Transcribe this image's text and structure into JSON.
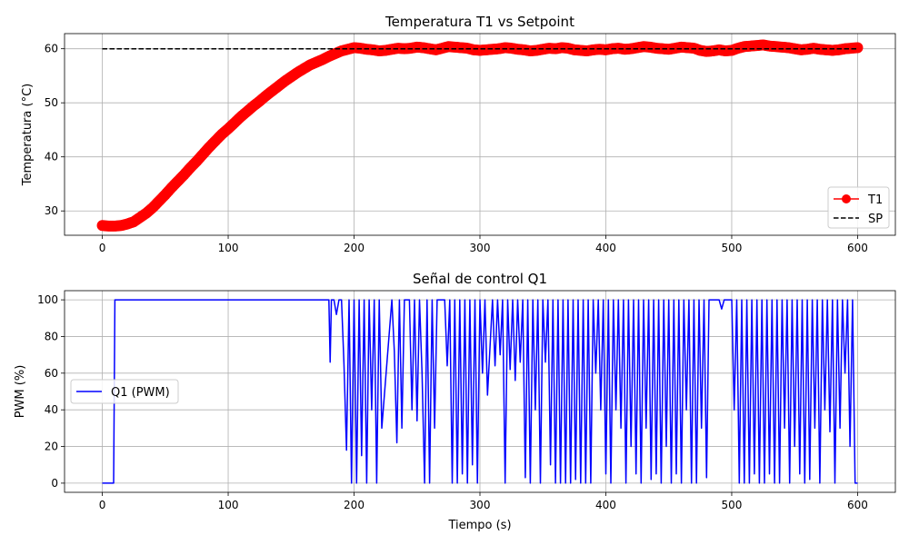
{
  "chart_data": [
    {
      "id": "top",
      "type": "line",
      "title": "Temperatura T1 vs Setpoint",
      "xlabel": "",
      "ylabel": "Temperatura (°C)",
      "xlim": [
        -30,
        630
      ],
      "ylim": [
        25.5,
        62.8
      ],
      "xticks": [
        0,
        100,
        200,
        300,
        400,
        500,
        600
      ],
      "yticks": [
        30,
        40,
        50,
        60
      ],
      "grid": true,
      "legend_position": "lower right",
      "series": [
        {
          "name": "T1",
          "color": "#ff0000",
          "marker": "circle",
          "x": [
            0,
            5,
            10,
            15,
            20,
            25,
            30,
            35,
            40,
            45,
            50,
            55,
            60,
            65,
            70,
            75,
            80,
            85,
            90,
            95,
            100,
            105,
            110,
            115,
            120,
            125,
            130,
            135,
            140,
            145,
            150,
            155,
            160,
            165,
            170,
            175,
            180,
            185,
            190,
            195,
            200,
            205,
            210,
            215,
            220,
            225,
            230,
            235,
            240,
            245,
            250,
            255,
            260,
            265,
            270,
            275,
            280,
            285,
            290,
            295,
            300,
            305,
            310,
            315,
            320,
            325,
            330,
            335,
            340,
            345,
            350,
            355,
            360,
            365,
            370,
            375,
            380,
            385,
            390,
            395,
            400,
            405,
            410,
            415,
            420,
            425,
            430,
            435,
            440,
            445,
            450,
            455,
            460,
            465,
            470,
            475,
            480,
            485,
            490,
            495,
            500,
            505,
            510,
            515,
            520,
            525,
            530,
            535,
            540,
            545,
            550,
            555,
            560,
            565,
            570,
            575,
            580,
            585,
            590,
            595,
            600
          ],
          "y": [
            27.3,
            27.2,
            27.2,
            27.3,
            27.6,
            28.0,
            28.8,
            29.6,
            30.6,
            31.8,
            33.0,
            34.3,
            35.5,
            36.7,
            38.0,
            39.2,
            40.5,
            41.8,
            43.0,
            44.2,
            45.2,
            46.3,
            47.4,
            48.4,
            49.4,
            50.3,
            51.3,
            52.2,
            53.1,
            54.0,
            54.8,
            55.6,
            56.3,
            57.0,
            57.5,
            58.0,
            58.6,
            59.1,
            59.6,
            59.9,
            60.2,
            60.1,
            59.9,
            59.8,
            59.6,
            59.7,
            59.9,
            60.1,
            60.0,
            60.1,
            60.3,
            60.2,
            60.0,
            59.8,
            60.1,
            60.4,
            60.3,
            60.2,
            60.1,
            59.8,
            59.7,
            59.8,
            59.9,
            60.0,
            60.2,
            60.1,
            59.9,
            59.8,
            59.6,
            59.7,
            59.9,
            60.1,
            60.0,
            60.2,
            60.1,
            59.8,
            59.7,
            59.6,
            59.8,
            59.9,
            59.8,
            60.0,
            60.1,
            59.9,
            60.0,
            60.2,
            60.4,
            60.3,
            60.1,
            60.0,
            59.9,
            60.1,
            60.3,
            60.2,
            60.1,
            59.7,
            59.5,
            59.6,
            59.8,
            59.6,
            59.7,
            60.1,
            60.4,
            60.5,
            60.6,
            60.7,
            60.5,
            60.4,
            60.3,
            60.2,
            60.0,
            59.8,
            59.9,
            60.1,
            59.9,
            59.8,
            59.7,
            59.8,
            60.0,
            60.1,
            60.2
          ]
        },
        {
          "name": "SP",
          "color": "#000000",
          "dashed": true,
          "x": [
            0,
            600
          ],
          "y": [
            60,
            60
          ]
        }
      ]
    },
    {
      "id": "bottom",
      "type": "line",
      "title": "Señal de control Q1",
      "xlabel": "Tiempo (s)",
      "ylabel": "PWM (%)",
      "xlim": [
        -30,
        630
      ],
      "ylim": [
        -5,
        105
      ],
      "xticks": [
        0,
        100,
        200,
        300,
        400,
        500,
        600
      ],
      "yticks": [
        0,
        20,
        40,
        60,
        80,
        100
      ],
      "grid": true,
      "legend_position": "center left",
      "series": [
        {
          "name": "Q1 (PWM)",
          "color": "#0000ff",
          "x": [
            0,
            9,
            10,
            180,
            181,
            182,
            184,
            186,
            188,
            190,
            192,
            194,
            196,
            198,
            200,
            202,
            204,
            206,
            208,
            210,
            212,
            214,
            216,
            218,
            220,
            222,
            230,
            232,
            234,
            236,
            238,
            240,
            244,
            246,
            248,
            250,
            252,
            254,
            256,
            258,
            260,
            262,
            264,
            266,
            272,
            274,
            276,
            278,
            280,
            282,
            284,
            286,
            288,
            290,
            292,
            294,
            296,
            298,
            300,
            302,
            304,
            306,
            310,
            312,
            314,
            316,
            318,
            320,
            322,
            324,
            326,
            328,
            330,
            332,
            334,
            336,
            338,
            340,
            342,
            344,
            346,
            348,
            350,
            352,
            354,
            356,
            358,
            360,
            362,
            364,
            366,
            368,
            370,
            372,
            374,
            376,
            378,
            380,
            382,
            384,
            386,
            388,
            390,
            392,
            394,
            396,
            398,
            400,
            402,
            404,
            406,
            408,
            410,
            412,
            414,
            416,
            418,
            420,
            422,
            424,
            426,
            428,
            430,
            432,
            434,
            436,
            438,
            440,
            442,
            444,
            446,
            448,
            450,
            452,
            454,
            456,
            458,
            460,
            462,
            464,
            466,
            468,
            470,
            472,
            474,
            476,
            478,
            480,
            482,
            490,
            492,
            494,
            496,
            498,
            500,
            502,
            504,
            506,
            508,
            510,
            512,
            514,
            516,
            518,
            520,
            522,
            524,
            526,
            528,
            530,
            532,
            534,
            536,
            538,
            540,
            542,
            544,
            546,
            548,
            550,
            552,
            554,
            556,
            558,
            560,
            562,
            564,
            566,
            568,
            570,
            572,
            574,
            576,
            578,
            580,
            582,
            584,
            586,
            588,
            590,
            592,
            594,
            596,
            598,
            600
          ],
          "y": [
            0,
            0,
            100,
            100,
            66,
            100,
            100,
            92,
            100,
            100,
            65,
            18,
            100,
            0,
            100,
            0,
            100,
            15,
            100,
            0,
            100,
            40,
            100,
            0,
            100,
            30,
            100,
            72,
            22,
            100,
            30,
            100,
            100,
            40,
            100,
            34,
            100,
            60,
            0,
            100,
            0,
            100,
            30,
            100,
            100,
            64,
            100,
            0,
            100,
            0,
            100,
            5,
            100,
            0,
            100,
            10,
            100,
            0,
            100,
            60,
            100,
            48,
            100,
            64,
            100,
            70,
            100,
            0,
            100,
            62,
            100,
            56,
            100,
            66,
            100,
            3,
            100,
            0,
            100,
            40,
            100,
            0,
            100,
            66,
            100,
            10,
            100,
            0,
            100,
            0,
            100,
            0,
            100,
            0,
            100,
            2,
            100,
            0,
            100,
            0,
            100,
            0,
            100,
            60,
            100,
            40,
            100,
            5,
            100,
            0,
            100,
            40,
            100,
            30,
            100,
            0,
            100,
            20,
            100,
            5,
            100,
            0,
            100,
            30,
            100,
            2,
            100,
            5,
            100,
            0,
            100,
            20,
            100,
            0,
            100,
            5,
            100,
            0,
            100,
            40,
            100,
            0,
            100,
            0,
            100,
            30,
            100,
            3,
            100,
            100,
            95,
            100,
            100,
            100,
            100,
            40,
            100,
            0,
            100,
            0,
            100,
            0,
            100,
            5,
            100,
            0,
            100,
            0,
            100,
            5,
            100,
            0,
            100,
            0,
            100,
            30,
            100,
            0,
            100,
            20,
            100,
            5,
            100,
            0,
            100,
            2,
            100,
            30,
            100,
            0,
            100,
            40,
            100,
            28,
            100,
            0,
            100,
            30,
            100,
            60,
            100,
            20,
            100,
            0,
            0
          ]
        }
      ]
    }
  ]
}
